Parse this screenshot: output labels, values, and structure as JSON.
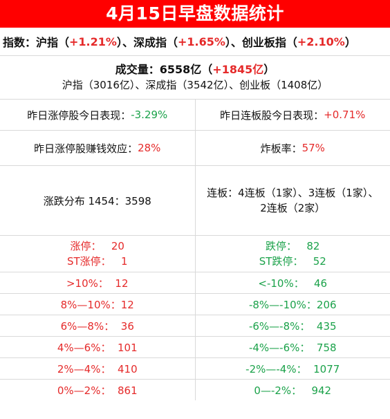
{
  "title": "4月15日早盘数据统计",
  "index": {
    "prefix": "指数：沪指（",
    "sh_change": "+1.21%",
    "mid1": "）、深成指（",
    "sz_change": "+1.65%",
    "mid2": "）、创业板指（",
    "cy_change": "+2.10%",
    "suffix": "）"
  },
  "volume": {
    "prefix": "成交量：6558亿（",
    "change": "+1845亿",
    "suffix": "）",
    "detail": "沪指（3016亿）、深成指（3542亿）、创业板（1408亿）"
  },
  "row1": {
    "left_label": "昨日涨停股今日表现：",
    "left_value": "-3.29%",
    "right_label": "昨日连板股今日表现：",
    "right_value": "+0.71%"
  },
  "row2": {
    "left_label": "昨日涨停股赚钱效应：",
    "left_value": "28%",
    "right_label": "炸板率：",
    "right_value": "57%"
  },
  "row3": {
    "left_text": "涨跌分布 1454：3598",
    "right_line1": "连板：4连板（1家）、3连板（1家）、",
    "right_line2": "2连板（2家）"
  },
  "row4": {
    "left_line1": "涨停：   20",
    "left_line2": "ST涨停：   1",
    "right_line1": "跌停：   82",
    "right_line2": "ST跌停：   52"
  },
  "distribution": [
    {
      "left": ">10%：  12",
      "right": "<-10%：   46"
    },
    {
      "left": "8%—10%：12",
      "right": "-8%—-10%：206"
    },
    {
      "left": "6%—8%：  36",
      "right": "-6%—-8%：  435"
    },
    {
      "left": "4%—6%：  101",
      "right": "-4%—-6%：  758"
    },
    {
      "left": "2%—4%：  410",
      "right": "-2%—-4%：  1077"
    },
    {
      "left": "0%—2%：  861",
      "right": "0—-2%：   942"
    }
  ],
  "colors": {
    "title_bg": "#ff0000",
    "up": "#e52a2a",
    "down": "#1ba24a"
  }
}
